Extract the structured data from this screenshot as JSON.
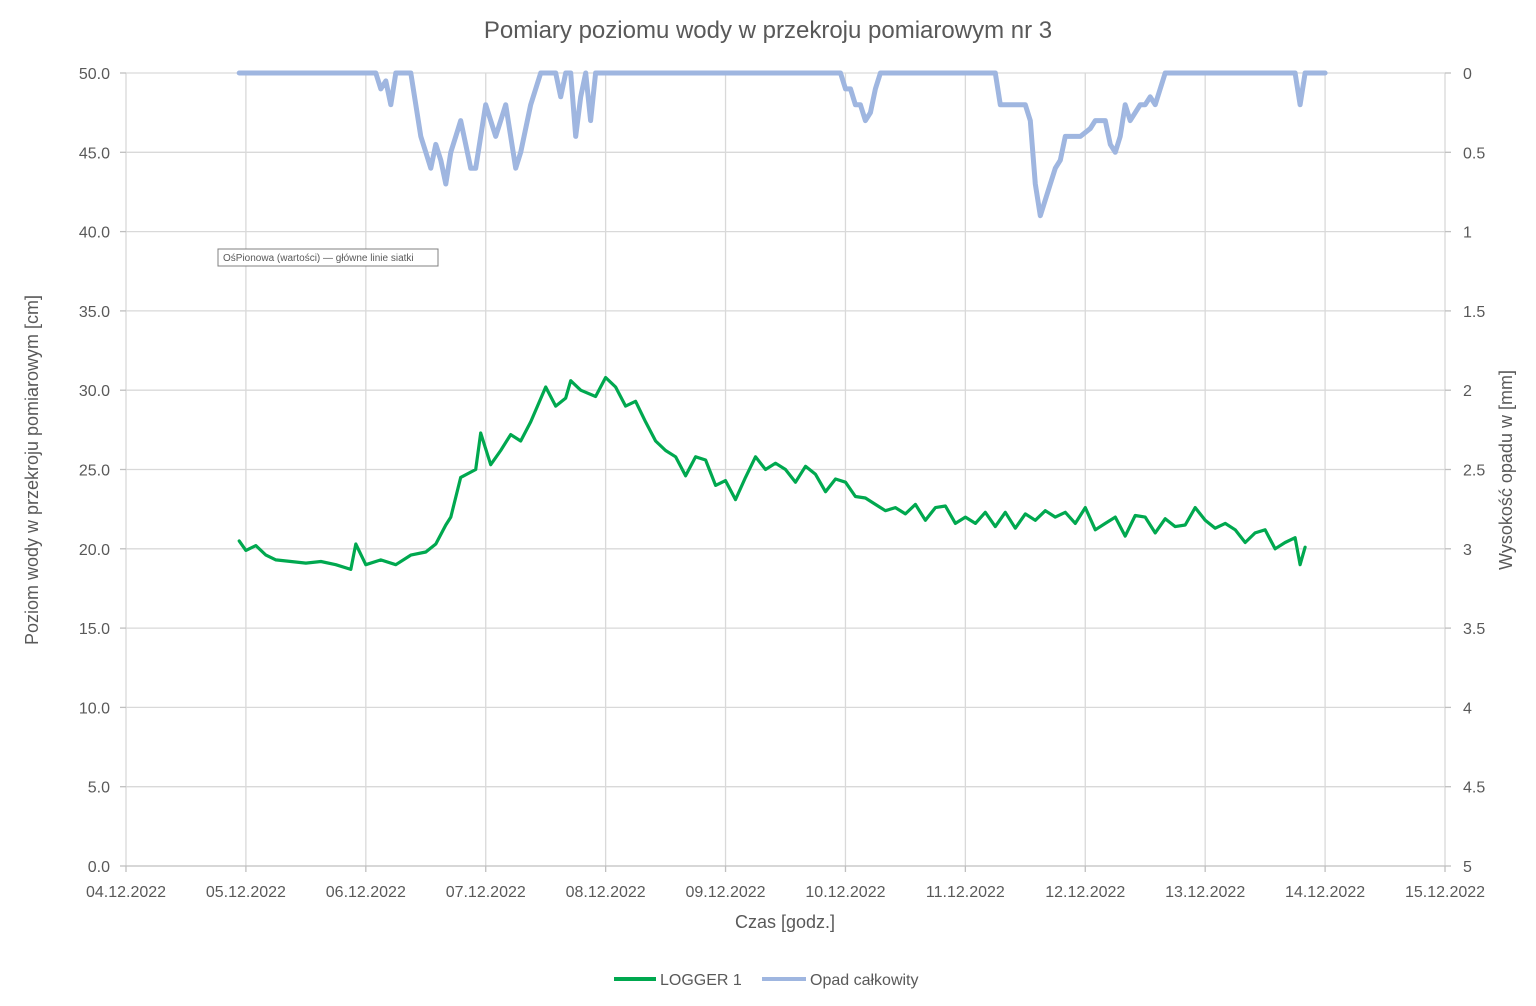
{
  "chart_data": {
    "type": "line",
    "title": "Pomiary poziomu wody w przekroju pomiarowym nr 3",
    "xlabel": "Czas [godz.]",
    "ylabel": "Poziom wody w przekroju pomiarowym [cm]",
    "y2label": "Wysokość opadu w [mm]",
    "x_ticks": [
      "04.12.2022",
      "05.12.2022",
      "06.12.2022",
      "07.12.2022",
      "08.12.2022",
      "09.12.2022",
      "10.12.2022",
      "11.12.2022",
      "12.12.2022",
      "13.12.2022",
      "14.12.2022",
      "15.12.2022"
    ],
    "y_ticks": [
      "0.0",
      "5.0",
      "10.0",
      "15.0",
      "20.0",
      "25.0",
      "30.0",
      "35.0",
      "40.0",
      "45.0",
      "50.0"
    ],
    "y2_ticks": [
      "0",
      "0.5",
      "1",
      "1.5",
      "2",
      "2.5",
      "3",
      "3.5",
      "4",
      "4.5",
      "5"
    ],
    "xlim": [
      "2022-12-04",
      "2022-12-15"
    ],
    "ylim": [
      0,
      50
    ],
    "y2lim": [
      0,
      5
    ],
    "y2_reversed": true,
    "grid": "vertical and horizontal major gridlines",
    "legend_position": "bottom",
    "tooltip": "OśPionowa (wartości)  — główne linie siatki",
    "series": [
      {
        "name": "LOGGER 1",
        "axis": "left",
        "color": "#00a84f",
        "points": [
          [
            "2022-12-04 22:40",
            20.5
          ],
          [
            "2022-12-05 00:00",
            19.9
          ],
          [
            "2022-12-05 02:00",
            20.2
          ],
          [
            "2022-12-05 04:00",
            19.6
          ],
          [
            "2022-12-05 06:00",
            19.3
          ],
          [
            "2022-12-05 09:00",
            19.2
          ],
          [
            "2022-12-05 12:00",
            19.1
          ],
          [
            "2022-12-05 15:00",
            19.2
          ],
          [
            "2022-12-05 18:00",
            19.0
          ],
          [
            "2022-12-05 21:00",
            18.7
          ],
          [
            "2022-12-05 22:00",
            20.3
          ],
          [
            "2022-12-06 00:00",
            19.0
          ],
          [
            "2022-12-06 03:00",
            19.3
          ],
          [
            "2022-12-06 06:00",
            19.0
          ],
          [
            "2022-12-06 09:00",
            19.6
          ],
          [
            "2022-12-06 12:00",
            19.8
          ],
          [
            "2022-12-06 14:00",
            20.3
          ],
          [
            "2022-12-06 16:00",
            21.5
          ],
          [
            "2022-12-06 17:00",
            22.0
          ],
          [
            "2022-12-06 19:00",
            24.5
          ],
          [
            "2022-12-06 22:00",
            25.0
          ],
          [
            "2022-12-06 23:00",
            27.3
          ],
          [
            "2022-12-07 01:00",
            25.3
          ],
          [
            "2022-12-07 03:00",
            26.2
          ],
          [
            "2022-12-07 05:00",
            27.2
          ],
          [
            "2022-12-07 07:00",
            26.8
          ],
          [
            "2022-12-07 09:00",
            28.0
          ],
          [
            "2022-12-07 12:00",
            30.2
          ],
          [
            "2022-12-07 14:00",
            29.0
          ],
          [
            "2022-12-07 16:00",
            29.5
          ],
          [
            "2022-12-07 17:00",
            30.6
          ],
          [
            "2022-12-07 19:00",
            30.0
          ],
          [
            "2022-12-07 22:00",
            29.6
          ],
          [
            "2022-12-08 00:00",
            30.8
          ],
          [
            "2022-12-08 02:00",
            30.2
          ],
          [
            "2022-12-08 04:00",
            29.0
          ],
          [
            "2022-12-08 06:00",
            29.3
          ],
          [
            "2022-12-08 08:00",
            28.0
          ],
          [
            "2022-12-08 10:00",
            26.8
          ],
          [
            "2022-12-08 12:00",
            26.2
          ],
          [
            "2022-12-08 14:00",
            25.8
          ],
          [
            "2022-12-08 16:00",
            24.6
          ],
          [
            "2022-12-08 18:00",
            25.8
          ],
          [
            "2022-12-08 20:00",
            25.6
          ],
          [
            "2022-12-08 22:00",
            24.0
          ],
          [
            "2022-12-09 00:00",
            24.3
          ],
          [
            "2022-12-09 02:00",
            23.1
          ],
          [
            "2022-12-09 04:00",
            24.5
          ],
          [
            "2022-12-09 06:00",
            25.8
          ],
          [
            "2022-12-09 08:00",
            25.0
          ],
          [
            "2022-12-09 10:00",
            25.4
          ],
          [
            "2022-12-09 12:00",
            25.0
          ],
          [
            "2022-12-09 14:00",
            24.2
          ],
          [
            "2022-12-09 16:00",
            25.2
          ],
          [
            "2022-12-09 18:00",
            24.7
          ],
          [
            "2022-12-09 20:00",
            23.6
          ],
          [
            "2022-12-09 22:00",
            24.4
          ],
          [
            "2022-12-10 00:00",
            24.2
          ],
          [
            "2022-12-10 02:00",
            23.3
          ],
          [
            "2022-12-10 04:00",
            23.2
          ],
          [
            "2022-12-10 06:00",
            22.8
          ],
          [
            "2022-12-10 08:00",
            22.4
          ],
          [
            "2022-12-10 10:00",
            22.6
          ],
          [
            "2022-12-10 12:00",
            22.2
          ],
          [
            "2022-12-10 14:00",
            22.8
          ],
          [
            "2022-12-10 16:00",
            21.8
          ],
          [
            "2022-12-10 18:00",
            22.6
          ],
          [
            "2022-12-10 20:00",
            22.7
          ],
          [
            "2022-12-10 22:00",
            21.6
          ],
          [
            "2022-12-11 00:00",
            22.0
          ],
          [
            "2022-12-11 02:00",
            21.6
          ],
          [
            "2022-12-11 04:00",
            22.3
          ],
          [
            "2022-12-11 06:00",
            21.4
          ],
          [
            "2022-12-11 08:00",
            22.3
          ],
          [
            "2022-12-11 10:00",
            21.3
          ],
          [
            "2022-12-11 12:00",
            22.2
          ],
          [
            "2022-12-11 14:00",
            21.8
          ],
          [
            "2022-12-11 16:00",
            22.4
          ],
          [
            "2022-12-11 18:00",
            22.0
          ],
          [
            "2022-12-11 20:00",
            22.3
          ],
          [
            "2022-12-11 22:00",
            21.6
          ],
          [
            "2022-12-12 00:00",
            22.6
          ],
          [
            "2022-12-12 02:00",
            21.2
          ],
          [
            "2022-12-12 04:00",
            21.6
          ],
          [
            "2022-12-12 06:00",
            22.0
          ],
          [
            "2022-12-12 08:00",
            20.8
          ],
          [
            "2022-12-12 10:00",
            22.1
          ],
          [
            "2022-12-12 12:00",
            22.0
          ],
          [
            "2022-12-12 14:00",
            21.0
          ],
          [
            "2022-12-12 16:00",
            21.9
          ],
          [
            "2022-12-12 18:00",
            21.4
          ],
          [
            "2022-12-12 20:00",
            21.5
          ],
          [
            "2022-12-12 22:00",
            22.6
          ],
          [
            "2022-12-13 00:00",
            21.8
          ],
          [
            "2022-12-13 02:00",
            21.3
          ],
          [
            "2022-12-13 04:00",
            21.6
          ],
          [
            "2022-12-13 06:00",
            21.2
          ],
          [
            "2022-12-13 08:00",
            20.4
          ],
          [
            "2022-12-13 10:00",
            21.0
          ],
          [
            "2022-12-13 12:00",
            21.2
          ],
          [
            "2022-12-13 14:00",
            20.0
          ],
          [
            "2022-12-13 16:00",
            20.4
          ],
          [
            "2022-12-13 18:00",
            20.7
          ],
          [
            "2022-12-13 19:00",
            19.0
          ],
          [
            "2022-12-13 20:00",
            20.1
          ]
        ]
      },
      {
        "name": "Opad całkowity",
        "axis": "right",
        "color": "#9fb6e0",
        "points": [
          [
            "2022-12-04 22:40",
            0
          ],
          [
            "2022-12-06 00:00",
            0
          ],
          [
            "2022-12-06 02:00",
            0
          ],
          [
            "2022-12-06 03:00",
            0.1
          ],
          [
            "2022-12-06 04:00",
            0.05
          ],
          [
            "2022-12-06 05:00",
            0.2
          ],
          [
            "2022-12-06 06:00",
            0
          ],
          [
            "2022-12-06 09:00",
            0
          ],
          [
            "2022-12-06 11:00",
            0.4
          ],
          [
            "2022-12-06 12:00",
            0.5
          ],
          [
            "2022-12-06 13:00",
            0.6
          ],
          [
            "2022-12-06 14:00",
            0.45
          ],
          [
            "2022-12-06 15:00",
            0.55
          ],
          [
            "2022-12-06 16:00",
            0.7
          ],
          [
            "2022-12-06 17:00",
            0.5
          ],
          [
            "2022-12-06 18:00",
            0.4
          ],
          [
            "2022-12-06 19:00",
            0.3
          ],
          [
            "2022-12-06 20:00",
            0.45
          ],
          [
            "2022-12-06 21:00",
            0.6
          ],
          [
            "2022-12-06 22:00",
            0.6
          ],
          [
            "2022-12-07 00:00",
            0.2
          ],
          [
            "2022-12-07 01:00",
            0.3
          ],
          [
            "2022-12-07 02:00",
            0.4
          ],
          [
            "2022-12-07 03:00",
            0.3
          ],
          [
            "2022-12-07 04:00",
            0.2
          ],
          [
            "2022-12-07 06:00",
            0.6
          ],
          [
            "2022-12-07 07:00",
            0.5
          ],
          [
            "2022-12-07 09:00",
            0.2
          ],
          [
            "2022-12-07 11:00",
            0
          ],
          [
            "2022-12-07 14:00",
            0
          ],
          [
            "2022-12-07 15:00",
            0.15
          ],
          [
            "2022-12-07 16:00",
            0
          ],
          [
            "2022-12-07 17:00",
            0
          ],
          [
            "2022-12-07 18:00",
            0.4
          ],
          [
            "2022-12-07 19:00",
            0.15
          ],
          [
            "2022-12-07 20:00",
            0
          ],
          [
            "2022-12-07 21:00",
            0.3
          ],
          [
            "2022-12-07 22:00",
            0
          ],
          [
            "2022-12-09 00:00",
            0
          ],
          [
            "2022-12-09 23:00",
            0
          ],
          [
            "2022-12-10 00:00",
            0.1
          ],
          [
            "2022-12-10 01:00",
            0.1
          ],
          [
            "2022-12-10 02:00",
            0.2
          ],
          [
            "2022-12-10 03:00",
            0.2
          ],
          [
            "2022-12-10 04:00",
            0.3
          ],
          [
            "2022-12-10 05:00",
            0.25
          ],
          [
            "2022-12-10 06:00",
            0.1
          ],
          [
            "2022-12-10 07:00",
            0
          ],
          [
            "2022-12-11 00:00",
            0
          ],
          [
            "2022-12-11 06:00",
            0
          ],
          [
            "2022-12-11 07:00",
            0.2
          ],
          [
            "2022-12-11 12:00",
            0.2
          ],
          [
            "2022-12-11 13:00",
            0.3
          ],
          [
            "2022-12-11 14:00",
            0.7
          ],
          [
            "2022-12-11 15:00",
            0.9
          ],
          [
            "2022-12-11 16:00",
            0.8
          ],
          [
            "2022-12-11 17:00",
            0.7
          ],
          [
            "2022-12-11 18:00",
            0.6
          ],
          [
            "2022-12-11 19:00",
            0.55
          ],
          [
            "2022-12-11 20:00",
            0.4
          ],
          [
            "2022-12-11 21:00",
            0.4
          ],
          [
            "2022-12-11 23:00",
            0.4
          ],
          [
            "2022-12-12 01:00",
            0.35
          ],
          [
            "2022-12-12 02:00",
            0.3
          ],
          [
            "2022-12-12 04:00",
            0.3
          ],
          [
            "2022-12-12 05:00",
            0.45
          ],
          [
            "2022-12-12 06:00",
            0.5
          ],
          [
            "2022-12-12 07:00",
            0.4
          ],
          [
            "2022-12-12 08:00",
            0.2
          ],
          [
            "2022-12-12 09:00",
            0.3
          ],
          [
            "2022-12-12 10:00",
            0.25
          ],
          [
            "2022-12-12 11:00",
            0.2
          ],
          [
            "2022-12-12 12:00",
            0.2
          ],
          [
            "2022-12-12 13:00",
            0.15
          ],
          [
            "2022-12-12 14:00",
            0.2
          ],
          [
            "2022-12-12 16:00",
            0
          ],
          [
            "2022-12-13 00:00",
            0
          ],
          [
            "2022-12-13 18:00",
            0
          ],
          [
            "2022-12-13 19:00",
            0.2
          ],
          [
            "2022-12-13 20:00",
            0
          ],
          [
            "2022-12-14 00:00",
            0
          ]
        ]
      }
    ]
  }
}
